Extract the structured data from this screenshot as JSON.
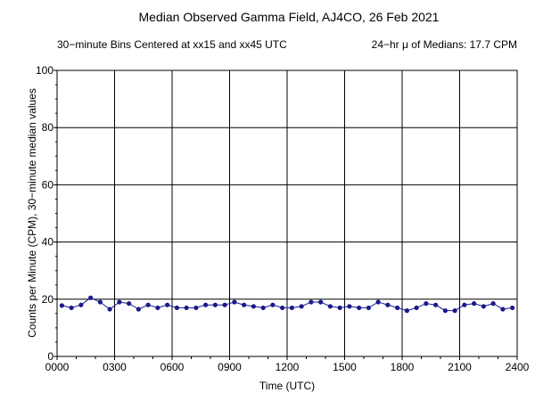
{
  "chart_data": {
    "type": "line",
    "title": "Median Observed Gamma Field, AJ4CO, 26 Feb 2021",
    "subtitle_left": "30−minute Bins Centered at xx15 and xx45 UTC",
    "subtitle_right": "24−hr μ of Medians: 17.7 CPM",
    "xlabel": "Time (UTC)",
    "ylabel": "Counts per Minute (CPM), 30−minute median values",
    "xlim": [
      0,
      24
    ],
    "ylim": [
      0,
      100
    ],
    "grid": true,
    "x_tick_labels": [
      "0000",
      "0300",
      "0600",
      "0900",
      "1200",
      "1500",
      "1800",
      "2100",
      "2400"
    ],
    "y_tick_labels": [
      "0",
      "20",
      "40",
      "60",
      "80",
      "100"
    ],
    "x": [
      0.25,
      0.75,
      1.25,
      1.75,
      2.25,
      2.75,
      3.25,
      3.75,
      4.25,
      4.75,
      5.25,
      5.75,
      6.25,
      6.75,
      7.25,
      7.75,
      8.25,
      8.75,
      9.25,
      9.75,
      10.25,
      10.75,
      11.25,
      11.75,
      12.25,
      12.75,
      13.25,
      13.75,
      14.25,
      14.75,
      15.25,
      15.75,
      16.25,
      16.75,
      17.25,
      17.75,
      18.25,
      18.75,
      19.25,
      19.75,
      20.25,
      20.75,
      21.25,
      21.75,
      22.25,
      22.75,
      23.25,
      23.75
    ],
    "series": [
      {
        "color": "#1a1a8c",
        "values": [
          17.8,
          17.0,
          18.0,
          20.5,
          19.0,
          16.5,
          19.0,
          18.5,
          16.5,
          18.0,
          17.0,
          18.0,
          17.0,
          17.0,
          17.0,
          18.0,
          18.0,
          18.0,
          19.0,
          18.0,
          17.5,
          17.0,
          18.0,
          17.0,
          17.0,
          17.5,
          19.0,
          19.0,
          17.5,
          17.0,
          17.5,
          17.0,
          17.0,
          19.0,
          18.0,
          17.0,
          16.0,
          17.0,
          18.5,
          18.0,
          16.0,
          16.0,
          18.0,
          18.5,
          17.5,
          18.5,
          16.5,
          17.0
        ]
      }
    ]
  }
}
